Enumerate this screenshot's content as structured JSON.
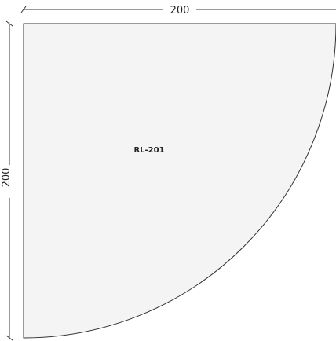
{
  "drawing": {
    "part_label": "RL-201",
    "width_dimension": "200",
    "height_dimension": "200",
    "shape_fill": "#f4f4f4",
    "stroke_color": "#333333"
  }
}
